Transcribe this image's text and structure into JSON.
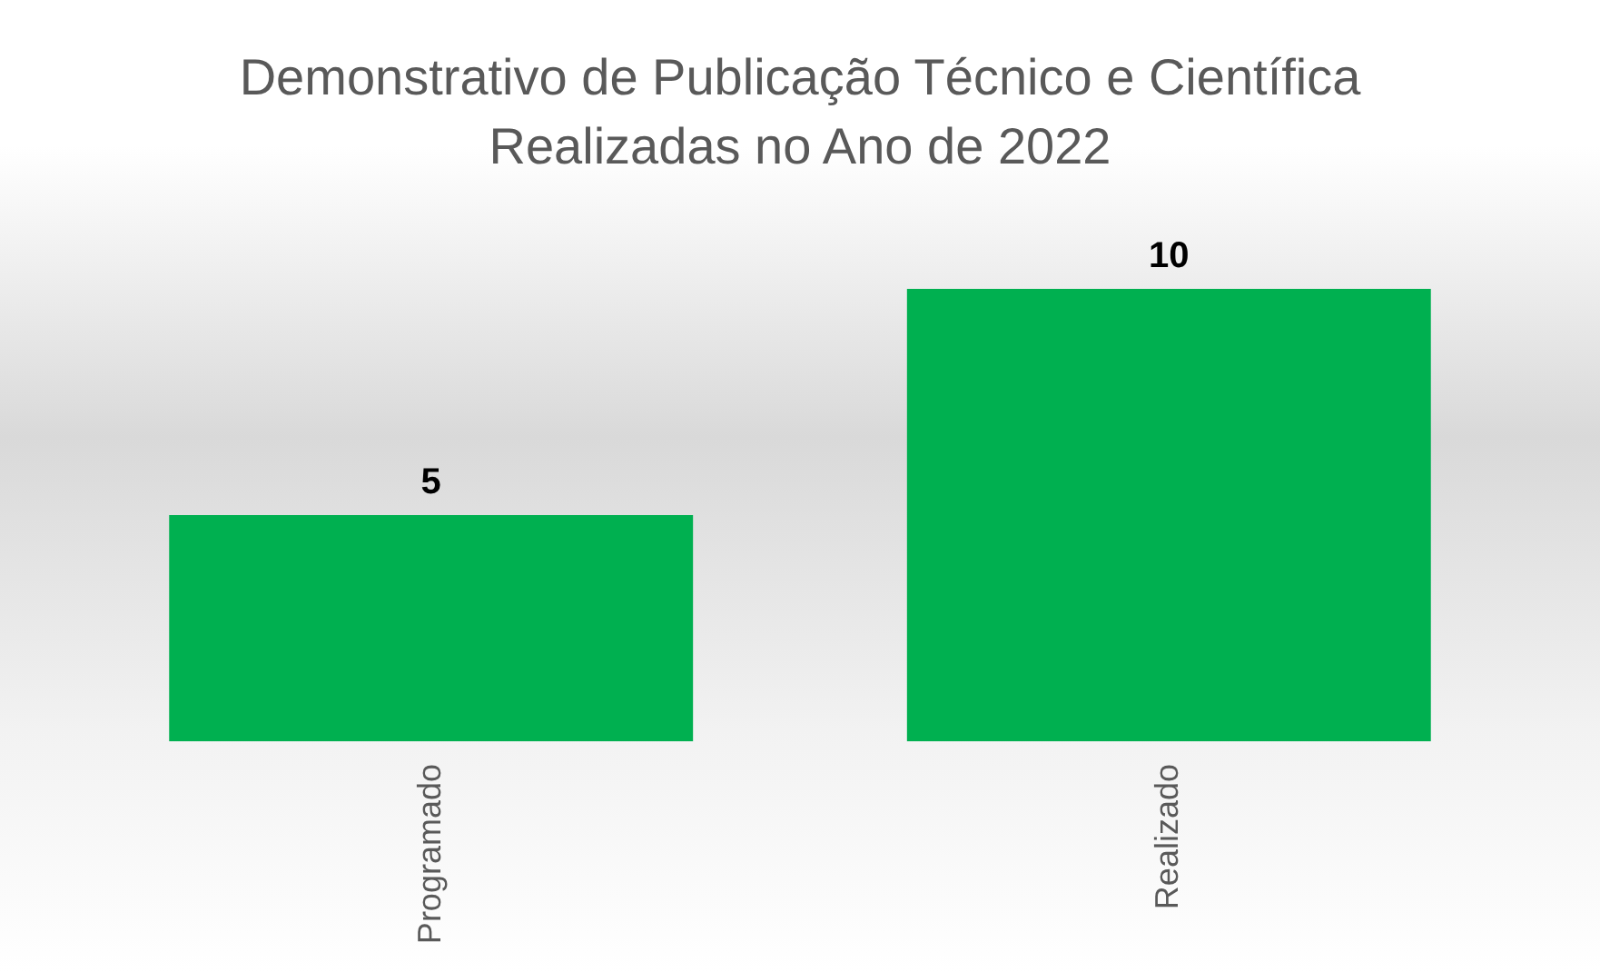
{
  "chart_data": {
    "type": "bar",
    "title": "Demonstrativo de Publicação Técnico e Científica\nRealizadas no Ano de 2022",
    "categories": [
      "Programado",
      "Realizado"
    ],
    "values": [
      5,
      10
    ],
    "color": "#00b050",
    "data_labels": true
  }
}
